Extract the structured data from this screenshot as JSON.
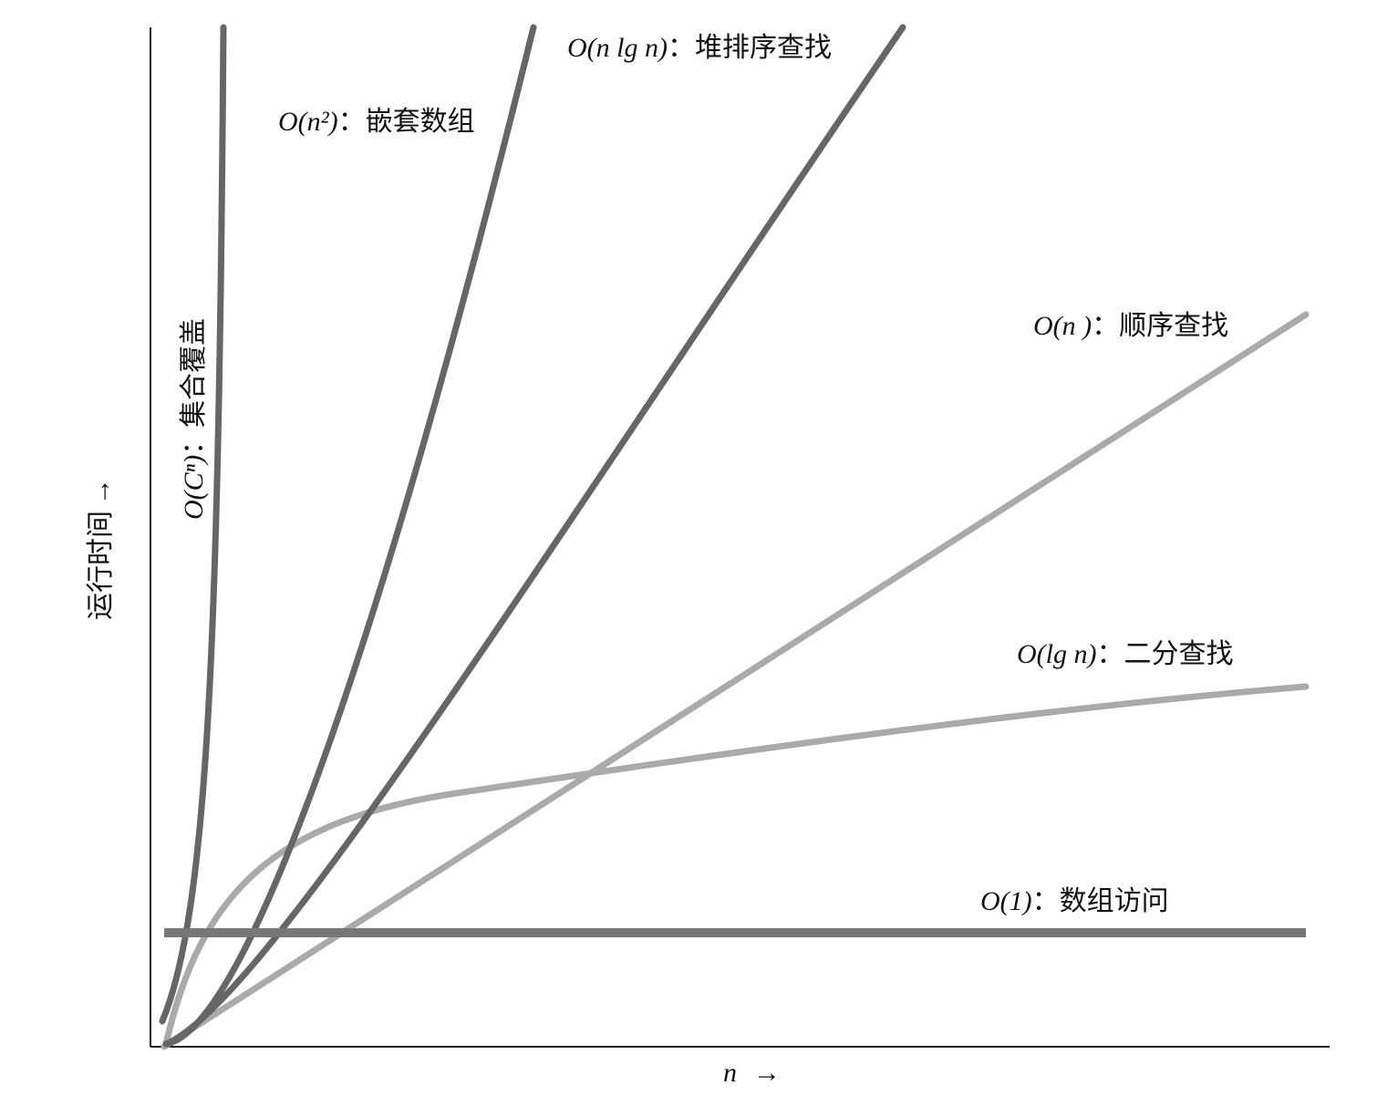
{
  "axes": {
    "x_label": "n",
    "x_arrow": "→",
    "y_label": "运行时间",
    "y_arrow": "→"
  },
  "curves": [
    {
      "notation": "O(Cⁿ)",
      "description": "：集合覆盖"
    },
    {
      "notation": "O(n²)",
      "description": "：嵌套数组"
    },
    {
      "notation": "O(n lg n)",
      "description": "：堆排序查找"
    },
    {
      "notation": "O(n )",
      "description": "：顺序查找"
    },
    {
      "notation": "O(lg n)",
      "description": "：二分查找"
    },
    {
      "notation": "O(1)",
      "description": "：数组访问"
    }
  ]
}
